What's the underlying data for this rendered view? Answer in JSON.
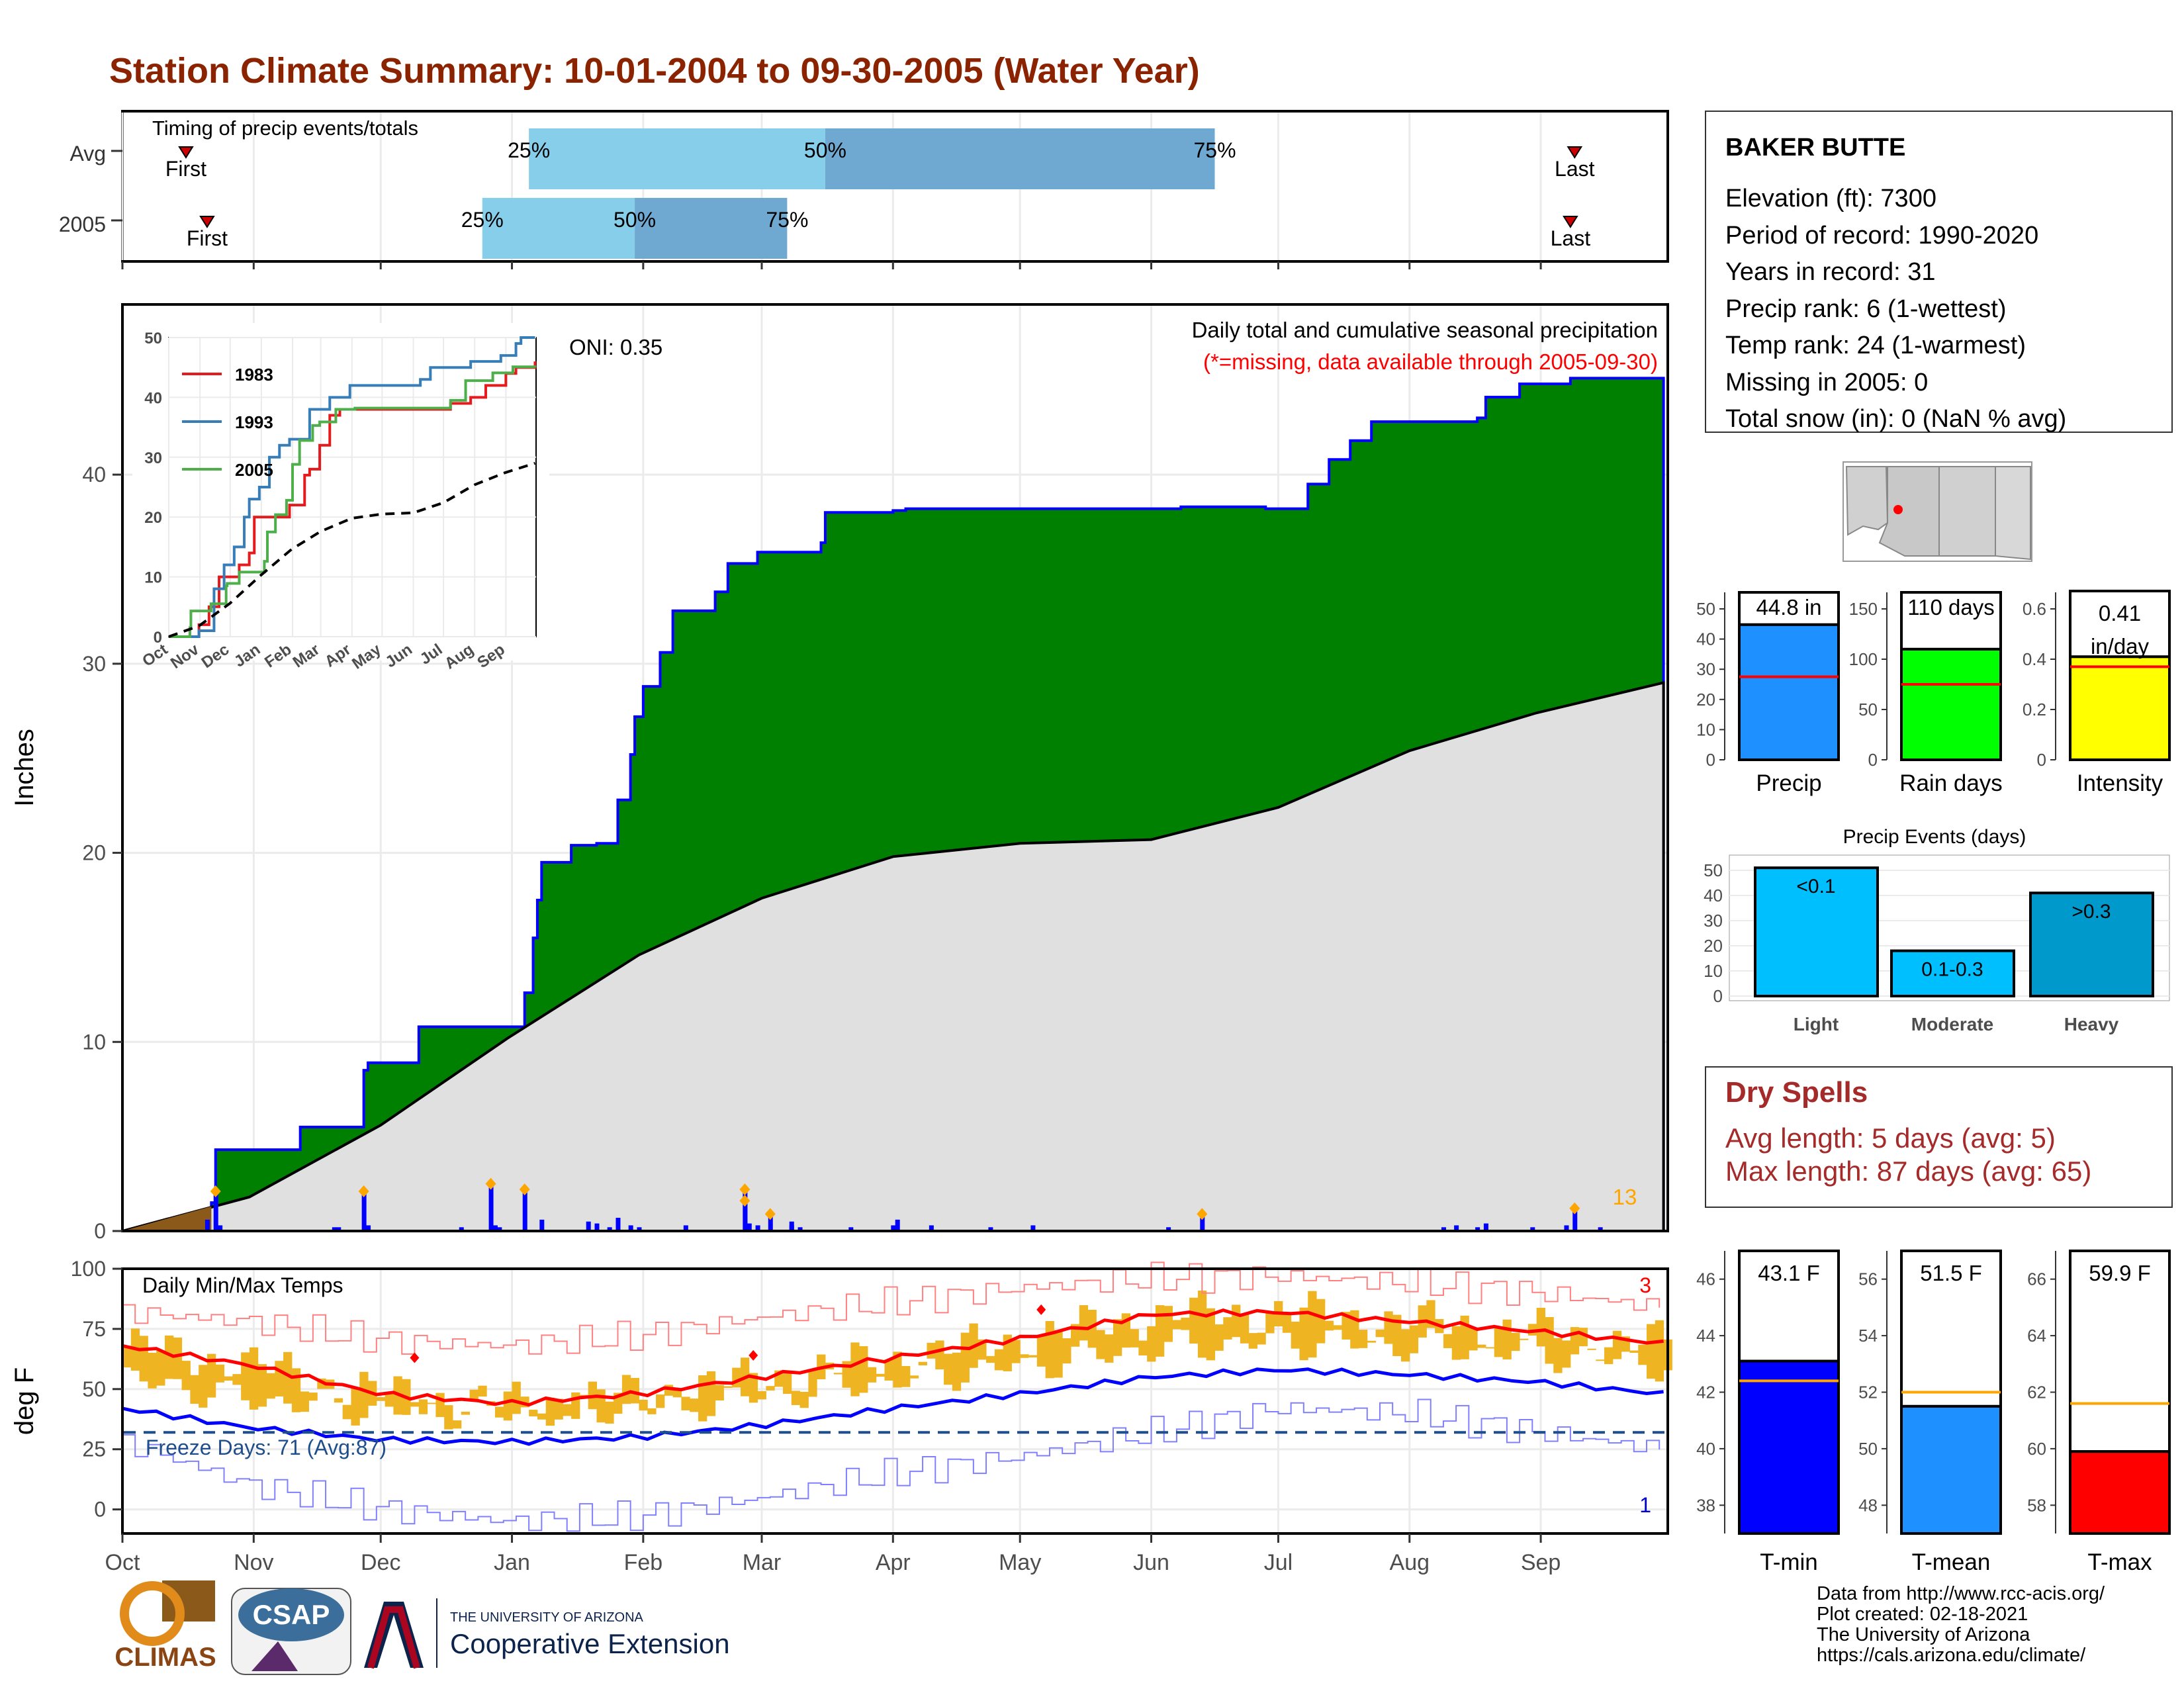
{
  "title": "Station Climate Summary: 10-01-2004 to 09-30-2005 (Water Year)",
  "colors": {
    "title": "#8b2300",
    "light_blue": "#87ceeb",
    "mid_blue": "#6fa8d0",
    "green": "#008000",
    "normal_gray": "#e0e0e0",
    "precip_blue": "#1e90ff",
    "rain_green": "#00ff00",
    "intensity_yellow": "#ffff00",
    "event_blue": "#00bfff",
    "heavy_blue": "#0099cc",
    "dry_red": "#a52a2a",
    "tmin_blue": "#0000ff",
    "tmax_red": "#ff0000",
    "avg_orange": "#ffa500",
    "temp_bar": "#eeb422"
  },
  "timing": {
    "header": "Timing of precip events/totals",
    "rows": [
      {
        "label": "Avg",
        "first_label": "First",
        "last_label": "Last",
        "first_day": 15,
        "last_day": 343,
        "p25_day": 96,
        "p50_day": 166,
        "p75_day": 258,
        "p25_label": "25%",
        "p50_label": "50%",
        "p75_label": "75%"
      },
      {
        "label": "2005",
        "first_label": "First",
        "last_label": "Last",
        "first_day": 20,
        "last_day": 342,
        "p25_day": 85,
        "p50_day": 121,
        "p75_day": 157,
        "p25_label": "25%",
        "p50_label": "50%",
        "p75_label": "75%"
      }
    ]
  },
  "station": {
    "name": "BAKER BUTTE",
    "lines": [
      "Elevation (ft): 7300",
      "Period of record: 1990-2020",
      "Years in record: 31",
      "Precip rank: 6 (1-wettest)",
      "Temp rank: 24 (1-warmest)",
      "Missing in 2005: 0",
      "Total snow (in): 0 (NaN % avg)"
    ]
  },
  "main_chart": {
    "ylabel": "Inches",
    "oni": "ONI: 0.35",
    "caption": "Daily total and cumulative seasonal precipitation",
    "missing_note": "(*=missing, data available through 2005-09-30)",
    "count_label": "13",
    "yticks": [
      0,
      10,
      20,
      30,
      40
    ],
    "ylim": [
      0,
      49
    ],
    "months": [
      "Oct",
      "Nov",
      "Dec",
      "Jan",
      "Feb",
      "Mar",
      "Apr",
      "May",
      "Jun",
      "Jul",
      "Aug",
      "Sep"
    ]
  },
  "chart_data": [
    {
      "type": "area",
      "name": "cumulative precipitation",
      "ylim": [
        0,
        49
      ],
      "series": [
        {
          "name": "2005",
          "x": [
            0,
            21,
            22,
            42,
            57,
            58,
            70,
            77,
            95,
            97,
            98,
            99,
            106,
            108,
            112,
            117,
            120,
            121,
            123,
            127,
            130,
            140,
            143,
            150,
            165,
            166,
            170,
            182,
            185,
            200,
            210,
            238,
            250,
            262,
            270,
            280,
            285,
            290,
            295,
            320,
            322,
            330,
            342,
            364
          ],
          "y": [
            0,
            1.5,
            4.3,
            5.5,
            8.5,
            8.9,
            10.8,
            10.8,
            12.6,
            15.5,
            17.5,
            19.5,
            20.4,
            20.4,
            20.5,
            22.8,
            25.2,
            27.2,
            28.8,
            30.6,
            32.8,
            33.8,
            35.3,
            35.9,
            36.4,
            38.0,
            38.0,
            38.1,
            38.2,
            38.2,
            38.2,
            38.2,
            38.3,
            38.3,
            38.2,
            39.5,
            40.8,
            41.8,
            42.8,
            43.0,
            44.1,
            44.8,
            45.1,
            45.0
          ]
        },
        {
          "name": "normal",
          "x": [
            0,
            30,
            61,
            91,
            122,
            151,
            182,
            212,
            243,
            273,
            304,
            334,
            364
          ],
          "y": [
            0,
            1.8,
            5.6,
            10.2,
            14.6,
            17.6,
            19.8,
            20.5,
            20.7,
            22.4,
            25.4,
            27.4,
            29.0
          ]
        }
      ]
    },
    {
      "type": "bar",
      "name": "daily precipitation",
      "x": [
        20,
        22,
        23,
        50,
        51,
        57,
        58,
        80,
        87,
        88,
        89,
        95,
        99,
        110,
        112,
        115,
        117,
        120,
        122,
        133,
        147,
        147,
        148,
        150,
        153,
        158,
        158,
        160,
        172,
        182,
        183,
        191,
        205,
        215,
        247,
        255,
        312,
        315,
        320,
        322,
        333,
        341,
        343,
        349
      ],
      "values": [
        0.6,
        2.1,
        0.3,
        0.2,
        0.2,
        2.1,
        0.3,
        0.2,
        2.5,
        0.3,
        0.2,
        2.2,
        0.6,
        0.5,
        0.4,
        0.2,
        0.7,
        0.3,
        0.2,
        0.3,
        2.2,
        1.6,
        0.4,
        0.3,
        0.9,
        0.3,
        0.5,
        0.2,
        0.2,
        0.3,
        0.6,
        0.3,
        0.2,
        0.3,
        0.2,
        0.9,
        0.2,
        0.3,
        0.2,
        0.4,
        0.2,
        0.3,
        1.2,
        0.2
      ]
    },
    {
      "type": "line",
      "name": "inset historical comparison",
      "categories": [
        "Oct",
        "Nov",
        "Dec",
        "Jan",
        "Feb",
        "Mar",
        "Apr",
        "May",
        "Jun",
        "Jul",
        "Aug",
        "Sep"
      ],
      "ylim": [
        0,
        50
      ],
      "series": [
        {
          "name": "1983",
          "x": [
            0,
            20,
            30,
            35,
            40,
            50,
            60,
            70,
            80,
            85,
            95,
            120,
            135,
            140,
            150,
            160,
            170,
            180,
            185,
            200,
            205,
            220,
            230,
            250,
            260,
            270,
            280,
            300,
            315,
            325,
            335,
            345,
            355,
            364
          ],
          "y": [
            0,
            0,
            2,
            2,
            5,
            10,
            10,
            12,
            14,
            20,
            20,
            22,
            27,
            28,
            32,
            37,
            38,
            38,
            38,
            38,
            38,
            38,
            38,
            38,
            38,
            38,
            39,
            40,
            42,
            42,
            44,
            45,
            45,
            46
          ]
        },
        {
          "name": "1993",
          "x": [
            0,
            20,
            30,
            45,
            55,
            65,
            75,
            80,
            90,
            100,
            110,
            120,
            140,
            160,
            180,
            200,
            230,
            250,
            260,
            280,
            300,
            320,
            330,
            345,
            350,
            364
          ],
          "y": [
            0,
            0,
            1,
            8,
            12,
            15,
            20,
            23,
            25,
            30,
            32,
            33,
            38,
            40,
            42,
            42,
            42,
            43,
            45,
            45,
            46,
            46,
            47,
            49,
            50,
            50
          ]
        },
        {
          "name": "2005",
          "x": [
            0,
            21,
            22,
            42,
            57,
            58,
            70,
            77,
            95,
            98,
            106,
            117,
            123,
            130,
            143,
            150,
            166,
            185,
            238,
            270,
            280,
            295,
            322,
            342,
            364
          ],
          "y": [
            0,
            1.5,
            4.3,
            5.5,
            8.5,
            8.9,
            10.8,
            10.8,
            12.6,
            17.5,
            20.4,
            22.8,
            28.8,
            32.8,
            35.3,
            35.9,
            38.0,
            38.2,
            38.2,
            38.2,
            39.5,
            42.8,
            44.1,
            45.1,
            45.0
          ]
        },
        {
          "name": "normal",
          "x": [
            0,
            30,
            61,
            91,
            122,
            151,
            182,
            212,
            243,
            273,
            304,
            334,
            364
          ],
          "y": [
            0,
            1.8,
            5.6,
            10.2,
            14.6,
            17.6,
            19.8,
            20.5,
            20.7,
            22.4,
            25.4,
            27.4,
            29.0
          ]
        }
      ]
    },
    {
      "type": "bar",
      "name": "season totals",
      "categories": [
        "Precip",
        "Rain days",
        "Intensity"
      ],
      "values": [
        44.8,
        110,
        0.41
      ],
      "averages": [
        27.5,
        75,
        0.37
      ],
      "value_labels": [
        "44.8 in",
        "110 days",
        "0.41 in/day"
      ],
      "ylims": [
        [
          0,
          50
        ],
        [
          0,
          150
        ],
        [
          0,
          0.6
        ]
      ]
    },
    {
      "type": "bar",
      "name": "Precip Events (days)",
      "title": "Precip Events (days)",
      "categories": [
        "Light",
        "Moderate",
        "Heavy"
      ],
      "bar_labels": [
        "<0.1",
        "0.1-0.3",
        ">0.3"
      ],
      "values": [
        51,
        18,
        41
      ],
      "ylim": [
        0,
        50
      ]
    },
    {
      "type": "line",
      "name": "Daily Min/Max Temps",
      "title": "Daily Min/Max Temps",
      "ylabel": "deg F",
      "ylim": [
        -10,
        100
      ],
      "freeze_line": 32,
      "freeze_label": "Freeze Days: 71 (Avg:87)",
      "record_high_count": "3",
      "record_low_count": "1",
      "series": [
        {
          "name": "avg max",
          "x": [
            0,
            30,
            61,
            91,
            122,
            151,
            182,
            212,
            243,
            273,
            304,
            334,
            364
          ],
          "y": [
            68,
            60,
            48,
            44,
            48,
            55,
            63,
            71,
            81,
            82,
            78,
            74,
            69
          ]
        },
        {
          "name": "avg min",
          "x": [
            0,
            30,
            61,
            91,
            122,
            151,
            182,
            212,
            243,
            273,
            304,
            334,
            364
          ],
          "y": [
            42,
            34,
            29,
            28,
            30,
            35,
            42,
            48,
            55,
            58,
            56,
            53,
            48
          ]
        },
        {
          "name": "record max",
          "x": [
            0,
            30,
            61,
            91,
            122,
            151,
            182,
            212,
            243,
            273,
            304,
            334,
            364
          ],
          "y": [
            82,
            78,
            70,
            68,
            72,
            80,
            86,
            92,
            96,
            97,
            94,
            90,
            84
          ]
        },
        {
          "name": "record min",
          "x": [
            0,
            30,
            61,
            91,
            122,
            151,
            182,
            212,
            243,
            273,
            304,
            334,
            364
          ],
          "y": [
            28,
            10,
            0,
            -5,
            -3,
            5,
            15,
            22,
            32,
            42,
            40,
            32,
            25
          ]
        }
      ]
    },
    {
      "type": "bar",
      "name": "mean temperatures",
      "categories": [
        "T-min",
        "T-mean",
        "T-max"
      ],
      "values": [
        43.1,
        51.5,
        59.9
      ],
      "averages": [
        42.4,
        52.0,
        61.6
      ],
      "value_labels": [
        "43.1 F",
        "51.5 F",
        "59.9 F"
      ],
      "ylims": [
        [
          37,
          47
        ],
        [
          47,
          57
        ],
        [
          57,
          67
        ]
      ]
    }
  ],
  "side": {
    "precip_axis_label": "Precip",
    "rain_axis_label": "Rain days",
    "intensity_axis_label": "Intensity",
    "precip_value": "44.8 in",
    "rain_value": "110 days",
    "intensity_value_1": "0.41",
    "intensity_value_2": "in/day",
    "events_title": "Precip Events (days)",
    "event_light": "<0.1",
    "event_moderate": "0.1-0.3",
    "event_heavy": ">0.3",
    "event_light_label": "Light",
    "event_moderate_label": "Moderate",
    "event_heavy_label": "Heavy",
    "dry_title": "Dry Spells",
    "dry_avg": "Avg length: 5 days (avg: 5)",
    "dry_max": "Max length: 87 days (avg: 65)",
    "tmin_value": "43.1 F",
    "tmean_value": "51.5 F",
    "tmax_value": "59.9 F",
    "tmin_label": "T-min",
    "tmean_label": "T-mean",
    "tmax_label": "T-max"
  },
  "inset": {
    "legend": [
      "1983",
      "1993",
      "2005"
    ],
    "months": [
      "Oct",
      "Nov",
      "Dec",
      "Jan",
      "Feb",
      "Mar",
      "Apr",
      "May",
      "Jun",
      "Jul",
      "Aug",
      "Sep"
    ],
    "yticks": [
      0,
      10,
      20,
      30,
      40,
      50
    ]
  },
  "footer": {
    "credits": [
      "Data from http://www.rcc-acis.org/",
      "Plot created: 02-18-2021",
      "The University of Arizona",
      "https://cals.arizona.edu/climate/"
    ],
    "climas": "CLIMAS",
    "csap": "CSAP",
    "ua_small": "THE UNIVERSITY OF ARIZONA",
    "ua_big": "Cooperative Extension"
  }
}
